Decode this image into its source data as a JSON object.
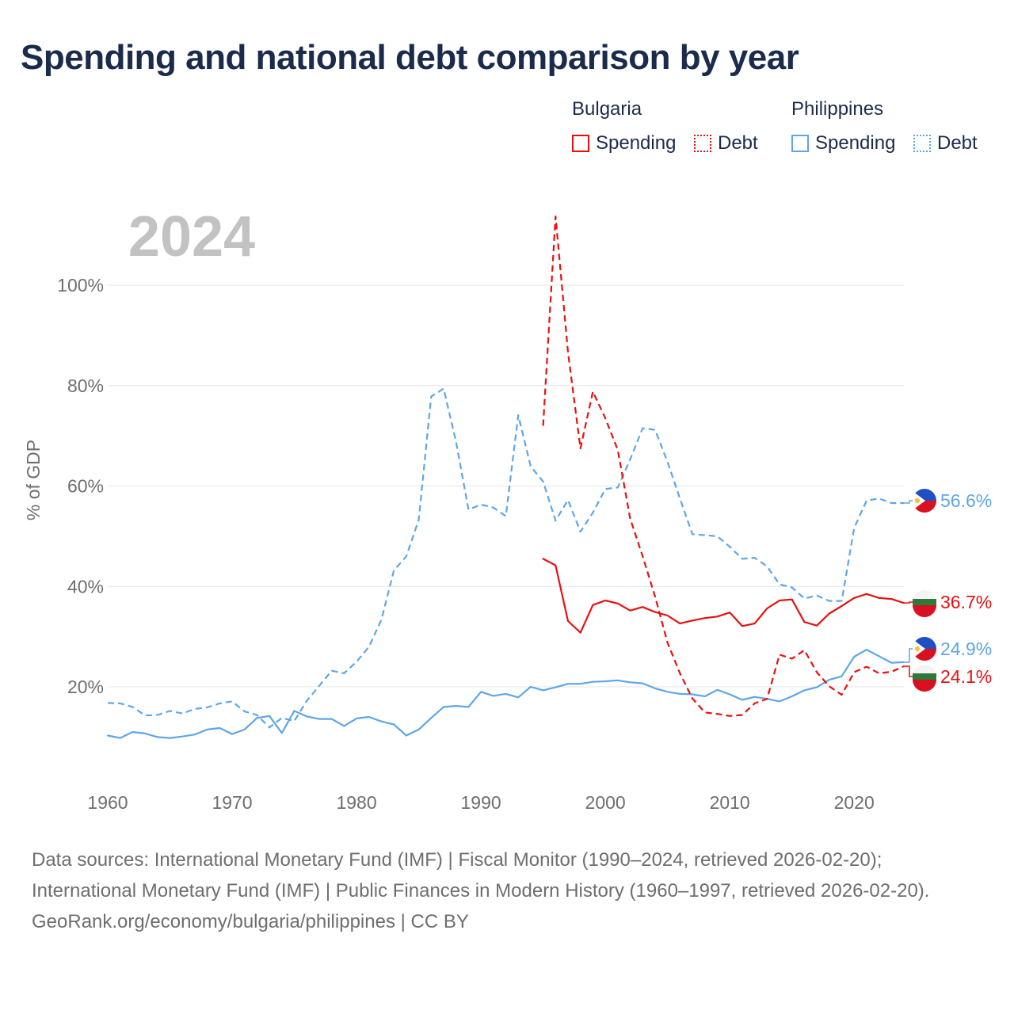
{
  "title": "Spending and national debt comparison by year",
  "legend": {
    "groups": [
      {
        "name": "Bulgaria",
        "items": [
          "Spending",
          "Debt"
        ]
      },
      {
        "name": "Philippines",
        "items": [
          "Spending",
          "Debt"
        ]
      }
    ]
  },
  "colors": {
    "bulgaria": "#e8100f",
    "philippines": "#5ea6e6"
  },
  "footer": {
    "sources": "Data sources: International Monetary Fund (IMF) | Fiscal Monitor (1990–2024, retrieved 2026-02-20); International Monetary Fund (IMF) | Public Finances in Modern History (1960–1997, retrieved 2026-02-20).",
    "credit": "GeoRank.org/economy/bulgaria/philippines | CC BY"
  },
  "chart_data": {
    "type": "line",
    "year_label": "2024",
    "ylabel": "% of GDP",
    "xlabel": "",
    "xlim": [
      1960,
      2024
    ],
    "ylim": [
      0,
      115
    ],
    "x_ticks": [
      1960,
      1970,
      1980,
      1990,
      2000,
      2010,
      2020
    ],
    "y_ticks": [
      20,
      40,
      60,
      80,
      100
    ],
    "y_tick_labels": [
      "20%",
      "40%",
      "60%",
      "80%",
      "100%"
    ],
    "grid": true,
    "series": [
      {
        "name": "Philippines Debt",
        "country": "Philippines",
        "kind": "Debt",
        "style": "dashed",
        "end_label": "56.6%",
        "x": [
          1960,
          1961,
          1962,
          1963,
          1964,
          1965,
          1966,
          1967,
          1968,
          1969,
          1970,
          1971,
          1972,
          1973,
          1974,
          1975,
          1976,
          1977,
          1978,
          1979,
          1980,
          1981,
          1982,
          1983,
          1984,
          1985,
          1986,
          1987,
          1988,
          1989,
          1990,
          1991,
          1992,
          1993,
          1994,
          1995,
          1996,
          1997,
          1998,
          1999,
          2000,
          2001,
          2002,
          2003,
          2004,
          2005,
          2006,
          2007,
          2008,
          2009,
          2010,
          2011,
          2012,
          2013,
          2014,
          2015,
          2016,
          2017,
          2018,
          2019,
          2020,
          2021,
          2022,
          2023,
          2024
        ],
        "y": [
          16.8,
          16.7,
          16.0,
          14.3,
          14.4,
          15.2,
          14.7,
          15.6,
          15.9,
          16.7,
          17.1,
          15.1,
          14.4,
          11.9,
          13.8,
          13.2,
          17.2,
          20.2,
          23.2,
          22.7,
          25.0,
          28.0,
          33.4,
          43.2,
          46.0,
          53.3,
          77.8,
          79.4,
          68.8,
          55.3,
          56.3,
          55.7,
          54.0,
          74.1,
          63.9,
          60.9,
          53.1,
          57.2,
          50.9,
          54.7,
          59.4,
          59.7,
          65.3,
          71.5,
          71.2,
          64.8,
          57.5,
          50.4,
          50.2,
          50.0,
          47.9,
          45.5,
          45.7,
          44.0,
          40.4,
          39.8,
          37.6,
          38.2,
          37.1,
          37.1,
          51.6,
          57.1,
          57.5,
          56.6,
          56.6
        ]
      },
      {
        "name": "Philippines Spending",
        "country": "Philippines",
        "kind": "Spending",
        "style": "solid",
        "end_label": "24.9%",
        "x": [
          1960,
          1961,
          1962,
          1963,
          1964,
          1965,
          1966,
          1967,
          1968,
          1969,
          1970,
          1971,
          1972,
          1973,
          1974,
          1975,
          1976,
          1977,
          1978,
          1979,
          1980,
          1981,
          1982,
          1983,
          1984,
          1985,
          1986,
          1987,
          1988,
          1989,
          1990,
          1991,
          1992,
          1993,
          1994,
          1995,
          1996,
          1997,
          1998,
          1999,
          2000,
          2001,
          2002,
          2003,
          2004,
          2005,
          2006,
          2007,
          2008,
          2009,
          2010,
          2011,
          2012,
          2013,
          2014,
          2015,
          2016,
          2017,
          2018,
          2019,
          2020,
          2021,
          2022,
          2023,
          2024
        ],
        "y": [
          10.3,
          9.8,
          11.0,
          10.7,
          10.0,
          9.8,
          10.1,
          10.5,
          11.5,
          11.8,
          10.6,
          11.5,
          13.8,
          14.2,
          10.8,
          15.2,
          14.1,
          13.6,
          13.6,
          12.2,
          13.7,
          14.0,
          13.1,
          12.5,
          10.3,
          11.5,
          13.8,
          16.0,
          16.2,
          16.0,
          19.0,
          18.2,
          18.6,
          17.9,
          20.0,
          19.3,
          19.9,
          20.6,
          20.6,
          21.0,
          21.1,
          21.3,
          20.9,
          20.7,
          19.7,
          19.0,
          18.6,
          18.5,
          18.1,
          19.4,
          18.5,
          17.4,
          18.0,
          17.6,
          17.1,
          18.1,
          19.3,
          19.9,
          21.4,
          22.1,
          26.0,
          27.4,
          26.1,
          24.8,
          24.9
        ]
      },
      {
        "name": "Bulgaria Debt",
        "country": "Bulgaria",
        "kind": "Debt",
        "style": "dashed",
        "end_label": "24.1%",
        "x": [
          1995,
          1996,
          1997,
          1998,
          1999,
          2000,
          2001,
          2002,
          2003,
          2004,
          2005,
          2006,
          2007,
          2008,
          2009,
          2010,
          2011,
          2012,
          2013,
          2014,
          2015,
          2016,
          2017,
          2018,
          2019,
          2020,
          2021,
          2022,
          2023,
          2024
        ],
        "y": [
          72.0,
          113.7,
          86.6,
          67.5,
          78.8,
          73.5,
          67.2,
          53.5,
          46.0,
          38.0,
          28.8,
          22.7,
          17.7,
          14.9,
          14.6,
          14.2,
          14.4,
          16.7,
          17.6,
          26.4,
          25.6,
          27.3,
          22.9,
          20.1,
          18.4,
          22.9,
          24.0,
          22.7,
          23.0,
          24.1
        ]
      },
      {
        "name": "Bulgaria Spending",
        "country": "Bulgaria",
        "kind": "Spending",
        "style": "solid",
        "end_label": "36.7%",
        "x": [
          1995,
          1996,
          1997,
          1998,
          1999,
          2000,
          2001,
          2002,
          2003,
          2004,
          2005,
          2006,
          2007,
          2008,
          2009,
          2010,
          2011,
          2012,
          2013,
          2014,
          2015,
          2016,
          2017,
          2018,
          2019,
          2020,
          2021,
          2022,
          2023,
          2024
        ],
        "y": [
          45.5,
          44.2,
          33.1,
          30.8,
          36.3,
          37.2,
          36.6,
          35.2,
          35.9,
          34.9,
          34.2,
          32.6,
          33.2,
          33.7,
          34.0,
          34.8,
          32.1,
          32.6,
          35.6,
          37.2,
          37.4,
          32.9,
          32.2,
          34.6,
          36.1,
          37.7,
          38.5,
          37.7,
          37.5,
          36.7
        ]
      }
    ]
  }
}
